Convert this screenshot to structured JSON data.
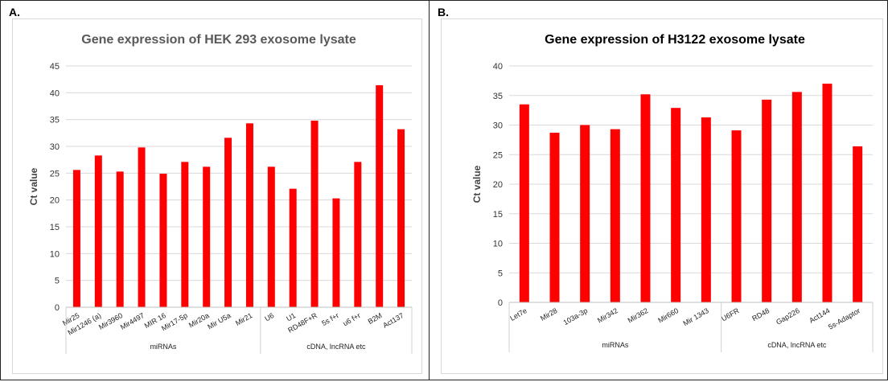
{
  "panels": [
    {
      "label": "A."
    },
    {
      "label": "B."
    }
  ],
  "chart_data": [
    {
      "type": "bar",
      "title": "Gene expression of  HEK 293 exosome lysate",
      "title_color": "#595959",
      "ylabel": "Ct value",
      "xlabel": "",
      "ylim": [
        0,
        45
      ],
      "yticks": [
        0,
        5,
        10,
        15,
        20,
        25,
        30,
        35,
        40,
        45
      ],
      "grid": true,
      "bar_color": "#ff0000",
      "categories": [
        "Mir25",
        "Mir1246 (a)",
        "Mir3960",
        "Mir4497",
        "MIR 16",
        "Mir17-5p",
        "Mir20a",
        "Mir U5a",
        "Mir21",
        "U6",
        "U1",
        "RD48F+R",
        "5s f+r",
        "u6 f+r",
        "B2M",
        "Act137"
      ],
      "values": [
        25.6,
        28.3,
        25.3,
        29.8,
        24.9,
        27.1,
        26.2,
        31.6,
        34.3,
        26.2,
        22.1,
        34.8,
        20.3,
        27.1,
        41.4,
        33.2
      ],
      "groups": [
        {
          "label": "miRNAs",
          "start": 0,
          "end": 8
        },
        {
          "label": "cDNA, lncRNA etc",
          "start": 9,
          "end": 15
        }
      ]
    },
    {
      "type": "bar",
      "title": "Gene expression of  H3122 exosome lysate",
      "title_color": "#000000",
      "ylabel": "Ct value",
      "xlabel": "",
      "ylim": [
        0,
        40
      ],
      "yticks": [
        0,
        5,
        10,
        15,
        20,
        25,
        30,
        35,
        40
      ],
      "grid": true,
      "bar_color": "#ff0000",
      "categories": [
        "Let7e",
        "Mir28",
        "103a-3p",
        "Mir342",
        "Mir362",
        "Mir660",
        "Mir 1343",
        "U6FR",
        "RD48",
        "Gap226",
        "Act144",
        "5s-Adaptor"
      ],
      "values": [
        33.5,
        28.7,
        30.0,
        29.3,
        35.2,
        32.9,
        31.3,
        29.1,
        34.3,
        35.6,
        37.0,
        26.4
      ],
      "groups": [
        {
          "label": "miRNAs",
          "start": 0,
          "end": 6
        },
        {
          "label": "cDNA, lncRNA etc",
          "start": 7,
          "end": 11
        }
      ]
    }
  ]
}
